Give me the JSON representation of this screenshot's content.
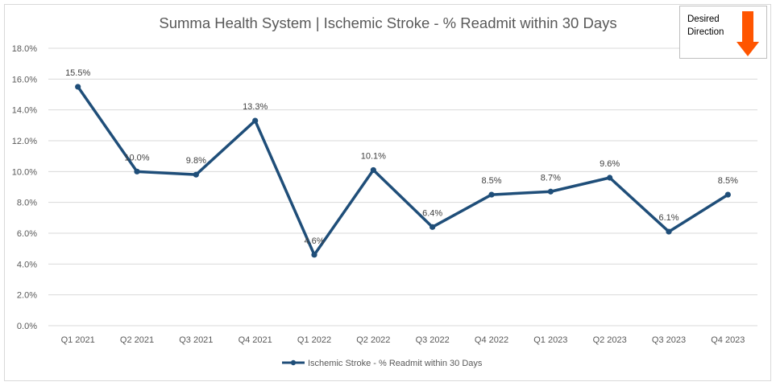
{
  "chart_data": {
    "type": "line",
    "title": "Summa Health System | Ischemic Stroke - % Readmit within 30 Days",
    "xlabel": "",
    "ylabel": "",
    "categories": [
      "Q1 2021",
      "Q2 2021",
      "Q3 2021",
      "Q4 2021",
      "Q1 2022",
      "Q2 2022",
      "Q3 2022",
      "Q4 2022",
      "Q1 2023",
      "Q2 2023",
      "Q3 2023",
      "Q4 2023"
    ],
    "series": [
      {
        "name": "Ischemic Stroke - % Readmit within 30 Days",
        "values": [
          15.5,
          10.0,
          9.8,
          13.3,
          4.6,
          10.1,
          6.4,
          8.5,
          8.7,
          9.6,
          6.1,
          8.5
        ],
        "data_labels": [
          "15.5%",
          "10.0%",
          "9.8%",
          "13.3%",
          "4.6%",
          "10.1%",
          "6.4%",
          "8.5%",
          "8.7%",
          "9.6%",
          "6.1%",
          "8.5%"
        ],
        "color": "#1f4e79"
      }
    ],
    "ylim": [
      0,
      18
    ],
    "yticks": [
      0,
      2,
      4,
      6,
      8,
      10,
      12,
      14,
      16,
      18
    ],
    "ytick_labels": [
      "0.0%",
      "2.0%",
      "4.0%",
      "6.0%",
      "8.0%",
      "10.0%",
      "12.0%",
      "14.0%",
      "16.0%",
      "18.0%"
    ],
    "grid": true,
    "legend": "bottom"
  },
  "annotation": {
    "desired_direction_label": "Desired Direction",
    "arrow_direction": "down",
    "arrow_color": "#ff5500"
  },
  "colors": {
    "gridline": "#d9d9d9",
    "series": "#1f4e79"
  }
}
